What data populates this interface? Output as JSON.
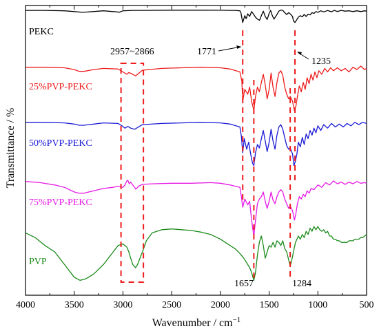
{
  "chart_data": {
    "type": "line",
    "xlabel": "Wavenumber / cm",
    "xlabel_sup": "−1",
    "ylabel": "Transmittance / %",
    "xlim": [
      4000,
      500
    ],
    "x_ticks": [
      "4000",
      "3500",
      "3000",
      "2500",
      "2000",
      "1500",
      "1000",
      "500"
    ],
    "y_ticks": false,
    "grid": false,
    "series": [
      {
        "name": "PEKC",
        "color": "#000000",
        "x": [
          4000,
          3800,
          3600,
          3500,
          3420,
          3350,
          3200,
          3060,
          3040,
          3000,
          2900,
          2800,
          2500,
          2200,
          2000,
          1900,
          1850,
          1800,
          1790,
          1771,
          1750,
          1735,
          1720,
          1700,
          1680,
          1660,
          1640,
          1620,
          1598,
          1580,
          1560,
          1540,
          1520,
          1500,
          1485,
          1470,
          1450,
          1420,
          1400,
          1380,
          1360,
          1340,
          1320,
          1300,
          1280,
          1260,
          1250,
          1235,
          1220,
          1200,
          1180,
          1160,
          1140,
          1120,
          1100,
          1080,
          1060,
          1040,
          1020,
          1000,
          970,
          940,
          900,
          860,
          830,
          800,
          760,
          720,
          680,
          640,
          600,
          560,
          520,
          500
        ],
        "y": [
          0.99,
          0.99,
          0.985,
          0.975,
          0.965,
          0.97,
          0.985,
          0.97,
          0.965,
          0.985,
          0.99,
          0.99,
          0.993,
          0.993,
          0.992,
          0.99,
          0.99,
          0.985,
          0.96,
          0.83,
          0.92,
          0.88,
          0.945,
          0.91,
          0.975,
          0.94,
          0.9,
          0.875,
          0.86,
          0.92,
          0.98,
          0.91,
          0.87,
          0.95,
          0.99,
          0.93,
          0.875,
          0.935,
          0.98,
          0.995,
          0.99,
          0.96,
          0.935,
          0.96,
          0.94,
          0.91,
          0.85,
          0.83,
          0.86,
          0.9,
          0.92,
          0.905,
          0.935,
          0.91,
          0.94,
          0.93,
          0.96,
          0.95,
          0.975,
          0.965,
          0.985,
          0.97,
          0.988,
          0.972,
          0.99,
          0.975,
          0.99,
          0.98,
          0.985,
          0.975,
          0.985,
          0.975,
          0.985,
          0.98
        ]
      },
      {
        "name": "25%PVP-PEKC",
        "color": "#ee1c1c",
        "x": [
          4000,
          3800,
          3600,
          3500,
          3450,
          3400,
          3300,
          3200,
          3050,
          3000,
          2960,
          2940,
          2900,
          2870,
          2850,
          2800,
          2600,
          2400,
          2200,
          2000,
          1900,
          1800,
          1780,
          1771,
          1750,
          1720,
          1700,
          1680,
          1657,
          1640,
          1620,
          1600,
          1580,
          1560,
          1540,
          1520,
          1500,
          1480,
          1460,
          1440,
          1420,
          1400,
          1380,
          1360,
          1340,
          1320,
          1300,
          1284,
          1260,
          1240,
          1225,
          1210,
          1190,
          1170,
          1150,
          1130,
          1110,
          1090,
          1070,
          1050,
          1030,
          1010,
          990,
          960,
          930,
          900,
          870,
          840,
          800,
          760,
          720,
          680,
          640,
          600,
          560,
          520,
          500
        ],
        "y": [
          0.99,
          0.99,
          0.985,
          0.97,
          0.955,
          0.955,
          0.97,
          0.98,
          0.975,
          0.95,
          0.93,
          0.945,
          0.93,
          0.915,
          0.93,
          0.965,
          0.98,
          0.985,
          0.99,
          0.985,
          0.975,
          0.95,
          0.87,
          0.7,
          0.8,
          0.76,
          0.82,
          0.7,
          0.62,
          0.74,
          0.82,
          0.78,
          0.86,
          0.93,
          0.84,
          0.72,
          0.8,
          0.94,
          0.82,
          0.74,
          0.86,
          0.94,
          0.96,
          0.92,
          0.82,
          0.76,
          0.72,
          0.74,
          0.7,
          0.62,
          0.66,
          0.74,
          0.83,
          0.78,
          0.86,
          0.8,
          0.9,
          0.85,
          0.93,
          0.88,
          0.95,
          0.9,
          0.96,
          0.93,
          0.98,
          0.95,
          0.985,
          0.96,
          0.985,
          0.96,
          0.98,
          0.95,
          0.99,
          0.97,
          1.0,
          0.97,
          0.98
        ]
      },
      {
        "name": "50%PVP-PEKC",
        "color": "#1a1ad6",
        "x": [
          4000,
          3800,
          3600,
          3500,
          3450,
          3400,
          3300,
          3200,
          3050,
          3010,
          2980,
          2950,
          2920,
          2880,
          2860,
          2800,
          2600,
          2400,
          2200,
          2000,
          1900,
          1800,
          1785,
          1771,
          1755,
          1730,
          1710,
          1690,
          1670,
          1657,
          1640,
          1620,
          1600,
          1580,
          1560,
          1540,
          1520,
          1500,
          1480,
          1460,
          1440,
          1420,
          1400,
          1380,
          1360,
          1340,
          1320,
          1300,
          1284,
          1260,
          1245,
          1230,
          1215,
          1200,
          1180,
          1160,
          1140,
          1120,
          1100,
          1080,
          1060,
          1040,
          1020,
          1000,
          970,
          940,
          900,
          860,
          820,
          780,
          740,
          700,
          660,
          620,
          580,
          540,
          500
        ],
        "y": [
          0.99,
          0.99,
          0.985,
          0.975,
          0.965,
          0.965,
          0.975,
          0.985,
          0.98,
          0.96,
          0.94,
          0.955,
          0.94,
          0.93,
          0.94,
          0.97,
          0.98,
          0.985,
          0.99,
          0.985,
          0.975,
          0.95,
          0.87,
          0.73,
          0.85,
          0.76,
          0.82,
          0.72,
          0.64,
          0.62,
          0.73,
          0.8,
          0.77,
          0.85,
          0.92,
          0.83,
          0.74,
          0.82,
          0.93,
          0.83,
          0.76,
          0.88,
          0.95,
          0.97,
          0.93,
          0.86,
          0.79,
          0.76,
          0.77,
          0.72,
          0.62,
          0.66,
          0.72,
          0.82,
          0.78,
          0.86,
          0.8,
          0.89,
          0.85,
          0.92,
          0.88,
          0.94,
          0.9,
          0.96,
          0.92,
          0.97,
          0.94,
          0.98,
          0.95,
          0.975,
          0.95,
          0.98,
          0.96,
          0.99,
          0.97,
          0.99,
          0.98
        ]
      },
      {
        "name": "75%PVP-PEKC",
        "color": "#e619e6",
        "x": [
          4000,
          3850,
          3700,
          3600,
          3500,
          3450,
          3400,
          3300,
          3200,
          3100,
          3050,
          3000,
          2980,
          2960,
          2950,
          2935,
          2920,
          2900,
          2880,
          2870,
          2860,
          2840,
          2800,
          2700,
          2500,
          2300,
          2100,
          2000,
          1900,
          1800,
          1785,
          1771,
          1750,
          1720,
          1700,
          1680,
          1657,
          1640,
          1620,
          1600,
          1580,
          1560,
          1540,
          1520,
          1500,
          1480,
          1460,
          1440,
          1420,
          1400,
          1380,
          1360,
          1340,
          1320,
          1300,
          1284,
          1260,
          1240,
          1225,
          1210,
          1190,
          1170,
          1150,
          1130,
          1110,
          1090,
          1070,
          1040,
          1000,
          960,
          920,
          880,
          840,
          800,
          760,
          720,
          680,
          640,
          600,
          560,
          520,
          500
        ],
        "y": [
          0.99,
          0.98,
          0.96,
          0.94,
          0.9,
          0.89,
          0.89,
          0.91,
          0.93,
          0.94,
          0.95,
          0.94,
          0.96,
          0.995,
          1.0,
          0.97,
          0.985,
          0.96,
          0.94,
          0.925,
          0.93,
          0.95,
          0.965,
          0.97,
          0.975,
          0.975,
          0.98,
          0.975,
          0.96,
          0.94,
          0.86,
          0.77,
          0.84,
          0.79,
          0.82,
          0.66,
          0.52,
          0.66,
          0.8,
          0.84,
          0.86,
          0.9,
          0.82,
          0.76,
          0.82,
          0.9,
          0.83,
          0.8,
          0.86,
          0.9,
          0.92,
          0.9,
          0.84,
          0.8,
          0.76,
          0.78,
          0.74,
          0.66,
          0.72,
          0.8,
          0.86,
          0.84,
          0.88,
          0.86,
          0.91,
          0.89,
          0.93,
          0.92,
          0.96,
          0.94,
          0.98,
          0.96,
          0.995,
          0.97,
          0.985,
          0.965,
          0.985,
          0.97,
          0.99,
          0.975,
          0.98,
          0.975
        ]
      },
      {
        "name": "PVP",
        "color": "#1a8a1a",
        "x": [
          4000,
          3900,
          3800,
          3700,
          3600,
          3500,
          3440,
          3380,
          3300,
          3200,
          3100,
          3050,
          3000,
          2960,
          2940,
          2920,
          2900,
          2870,
          2850,
          2800,
          2760,
          2700,
          2600,
          2500,
          2400,
          2300,
          2200,
          2100,
          2000,
          1950,
          1900,
          1850,
          1800,
          1760,
          1720,
          1700,
          1680,
          1657,
          1640,
          1620,
          1600,
          1580,
          1560,
          1540,
          1520,
          1500,
          1480,
          1460,
          1440,
          1420,
          1400,
          1380,
          1360,
          1340,
          1320,
          1300,
          1284,
          1270,
          1250,
          1230,
          1200,
          1180,
          1160,
          1140,
          1120,
          1100,
          1080,
          1060,
          1040,
          1020,
          1000,
          980,
          960,
          940,
          920,
          900,
          880,
          860,
          840,
          820,
          800,
          780,
          760,
          740,
          720,
          700,
          680,
          660,
          640,
          620,
          600,
          580,
          560,
          540,
          520,
          500
        ],
        "y": [
          0.92,
          0.89,
          0.84,
          0.8,
          0.72,
          0.64,
          0.62,
          0.63,
          0.66,
          0.72,
          0.8,
          0.84,
          0.85,
          0.83,
          0.8,
          0.76,
          0.72,
          0.7,
          0.72,
          0.8,
          0.87,
          0.92,
          0.94,
          0.945,
          0.94,
          0.935,
          0.925,
          0.91,
          0.88,
          0.86,
          0.84,
          0.82,
          0.79,
          0.76,
          0.72,
          0.7,
          0.67,
          0.62,
          0.67,
          0.78,
          0.86,
          0.9,
          0.84,
          0.76,
          0.8,
          0.84,
          0.83,
          0.86,
          0.83,
          0.87,
          0.86,
          0.84,
          0.87,
          0.82,
          0.8,
          0.75,
          0.71,
          0.74,
          0.8,
          0.86,
          0.9,
          0.88,
          0.91,
          0.89,
          0.93,
          0.91,
          0.95,
          0.93,
          0.96,
          0.94,
          0.96,
          0.94,
          0.93,
          0.94,
          0.92,
          0.93,
          0.9,
          0.9,
          0.88,
          0.88,
          0.87,
          0.87,
          0.86,
          0.86,
          0.86,
          0.86,
          0.87,
          0.87,
          0.87,
          0.88,
          0.88,
          0.88,
          0.89,
          0.89,
          0.9,
          0.91
        ]
      }
    ],
    "annotations": {
      "pekc_1771": "1771",
      "pekc_1235": "1235",
      "range_ch": "2957~2866",
      "pvp_1657": "1657",
      "pvp_1284": "1284"
    }
  }
}
